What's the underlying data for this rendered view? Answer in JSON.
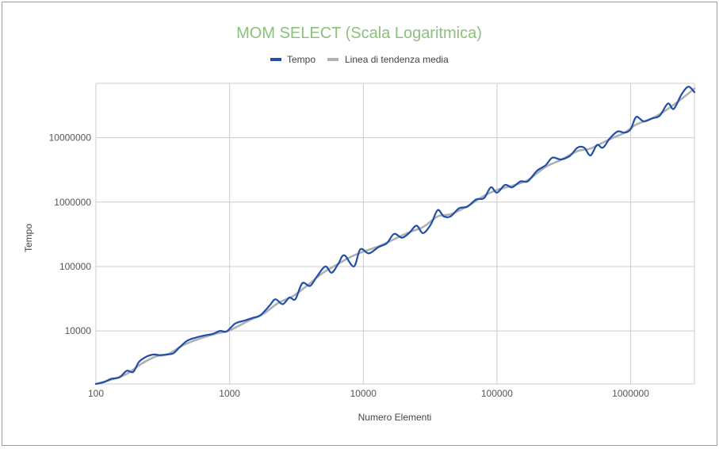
{
  "chart_data": {
    "type": "line",
    "title": "MOM SELECT (Scala Logaritmica)",
    "xlabel": "Numero Elementi",
    "ylabel": "Tempo",
    "x_scale": "log",
    "y_scale": "log",
    "xlim": [
      100,
      3000000
    ],
    "ylim": [
      1500,
      70000000
    ],
    "x_ticks": [
      "100",
      "1000",
      "10000",
      "100000",
      "1000000"
    ],
    "y_ticks": [
      "10000",
      "100000",
      "1000000",
      "10000000"
    ],
    "grid": true,
    "legend": "top-center",
    "series": [
      {
        "name": "Tempo",
        "color": "#1f4fa8",
        "points": [
          [
            100,
            1500
          ],
          [
            115,
            1600
          ],
          [
            130,
            1800
          ],
          [
            150,
            1900
          ],
          [
            170,
            2400
          ],
          [
            190,
            2300
          ],
          [
            210,
            3300
          ],
          [
            240,
            4000
          ],
          [
            270,
            4300
          ],
          [
            300,
            4200
          ],
          [
            340,
            4300
          ],
          [
            380,
            4500
          ],
          [
            420,
            5500
          ],
          [
            480,
            7000
          ],
          [
            550,
            7800
          ],
          [
            650,
            8500
          ],
          [
            750,
            9000
          ],
          [
            850,
            10000
          ],
          [
            950,
            9800
          ],
          [
            1100,
            13000
          ],
          [
            1300,
            14500
          ],
          [
            1500,
            16000
          ],
          [
            1700,
            17500
          ],
          [
            2000,
            25000
          ],
          [
            2200,
            31000
          ],
          [
            2500,
            26000
          ],
          [
            2800,
            33000
          ],
          [
            3100,
            31000
          ],
          [
            3500,
            55000
          ],
          [
            4000,
            50000
          ],
          [
            4500,
            70000
          ],
          [
            5200,
            100000
          ],
          [
            5800,
            80000
          ],
          [
            6500,
            110000
          ],
          [
            7200,
            150000
          ],
          [
            8500,
            100000
          ],
          [
            9500,
            185000
          ],
          [
            11000,
            160000
          ],
          [
            13000,
            200000
          ],
          [
            15000,
            230000
          ],
          [
            17000,
            320000
          ],
          [
            19500,
            280000
          ],
          [
            22000,
            330000
          ],
          [
            25000,
            430000
          ],
          [
            28000,
            330000
          ],
          [
            32000,
            450000
          ],
          [
            36000,
            750000
          ],
          [
            40000,
            600000
          ],
          [
            45000,
            600000
          ],
          [
            52000,
            800000
          ],
          [
            60000,
            850000
          ],
          [
            70000,
            1100000
          ],
          [
            80000,
            1150000
          ],
          [
            90000,
            1700000
          ],
          [
            100000,
            1400000
          ],
          [
            115000,
            1850000
          ],
          [
            130000,
            1700000
          ],
          [
            150000,
            2100000
          ],
          [
            170000,
            2100000
          ],
          [
            200000,
            3100000
          ],
          [
            230000,
            3700000
          ],
          [
            260000,
            4900000
          ],
          [
            300000,
            4600000
          ],
          [
            350000,
            5200000
          ],
          [
            400000,
            7000000
          ],
          [
            450000,
            7000000
          ],
          [
            500000,
            5300000
          ],
          [
            560000,
            7700000
          ],
          [
            620000,
            7000000
          ],
          [
            700000,
            9800000
          ],
          [
            800000,
            12500000
          ],
          [
            900000,
            12000000
          ],
          [
            1000000,
            13500000
          ],
          [
            1100000,
            21000000
          ],
          [
            1250000,
            18000000
          ],
          [
            1450000,
            20000000
          ],
          [
            1650000,
            22000000
          ],
          [
            1900000,
            34000000
          ],
          [
            2100000,
            28000000
          ],
          [
            2400000,
            47000000
          ],
          [
            2700000,
            62000000
          ],
          [
            3000000,
            51000000
          ]
        ]
      },
      {
        "name": "Linea di tendenza media",
        "color": "#b0b0b0",
        "points": [
          [
            100,
            1500
          ],
          [
            130,
            1750
          ],
          [
            170,
            2150
          ],
          [
            220,
            3100
          ],
          [
            280,
            4000
          ],
          [
            350,
            4400
          ],
          [
            450,
            6000
          ],
          [
            600,
            7600
          ],
          [
            800,
            9100
          ],
          [
            1000,
            10200
          ],
          [
            1400,
            14500
          ],
          [
            1800,
            18500
          ],
          [
            2300,
            27000
          ],
          [
            3000,
            35000
          ],
          [
            4000,
            55000
          ],
          [
            5000,
            80000
          ],
          [
            6500,
            110000
          ],
          [
            8000,
            140000
          ],
          [
            10000,
            170000
          ],
          [
            13000,
            205000
          ],
          [
            17000,
            265000
          ],
          [
            22000,
            340000
          ],
          [
            28000,
            410000
          ],
          [
            36000,
            600000
          ],
          [
            45000,
            650000
          ],
          [
            60000,
            860000
          ],
          [
            80000,
            1250000
          ],
          [
            100000,
            1550000
          ],
          [
            130000,
            1800000
          ],
          [
            170000,
            2200000
          ],
          [
            230000,
            3500000
          ],
          [
            300000,
            4500000
          ],
          [
            400000,
            6200000
          ],
          [
            500000,
            6800000
          ],
          [
            700000,
            9500000
          ],
          [
            900000,
            12000000
          ],
          [
            1100000,
            16000000
          ],
          [
            1450000,
            20000000
          ],
          [
            1900000,
            28000000
          ],
          [
            2400000,
            40000000
          ],
          [
            3000000,
            58000000
          ]
        ]
      }
    ]
  },
  "colors": {
    "title": "#8bc17a",
    "gridline": "#cccccc",
    "axis_text": "#555555"
  }
}
